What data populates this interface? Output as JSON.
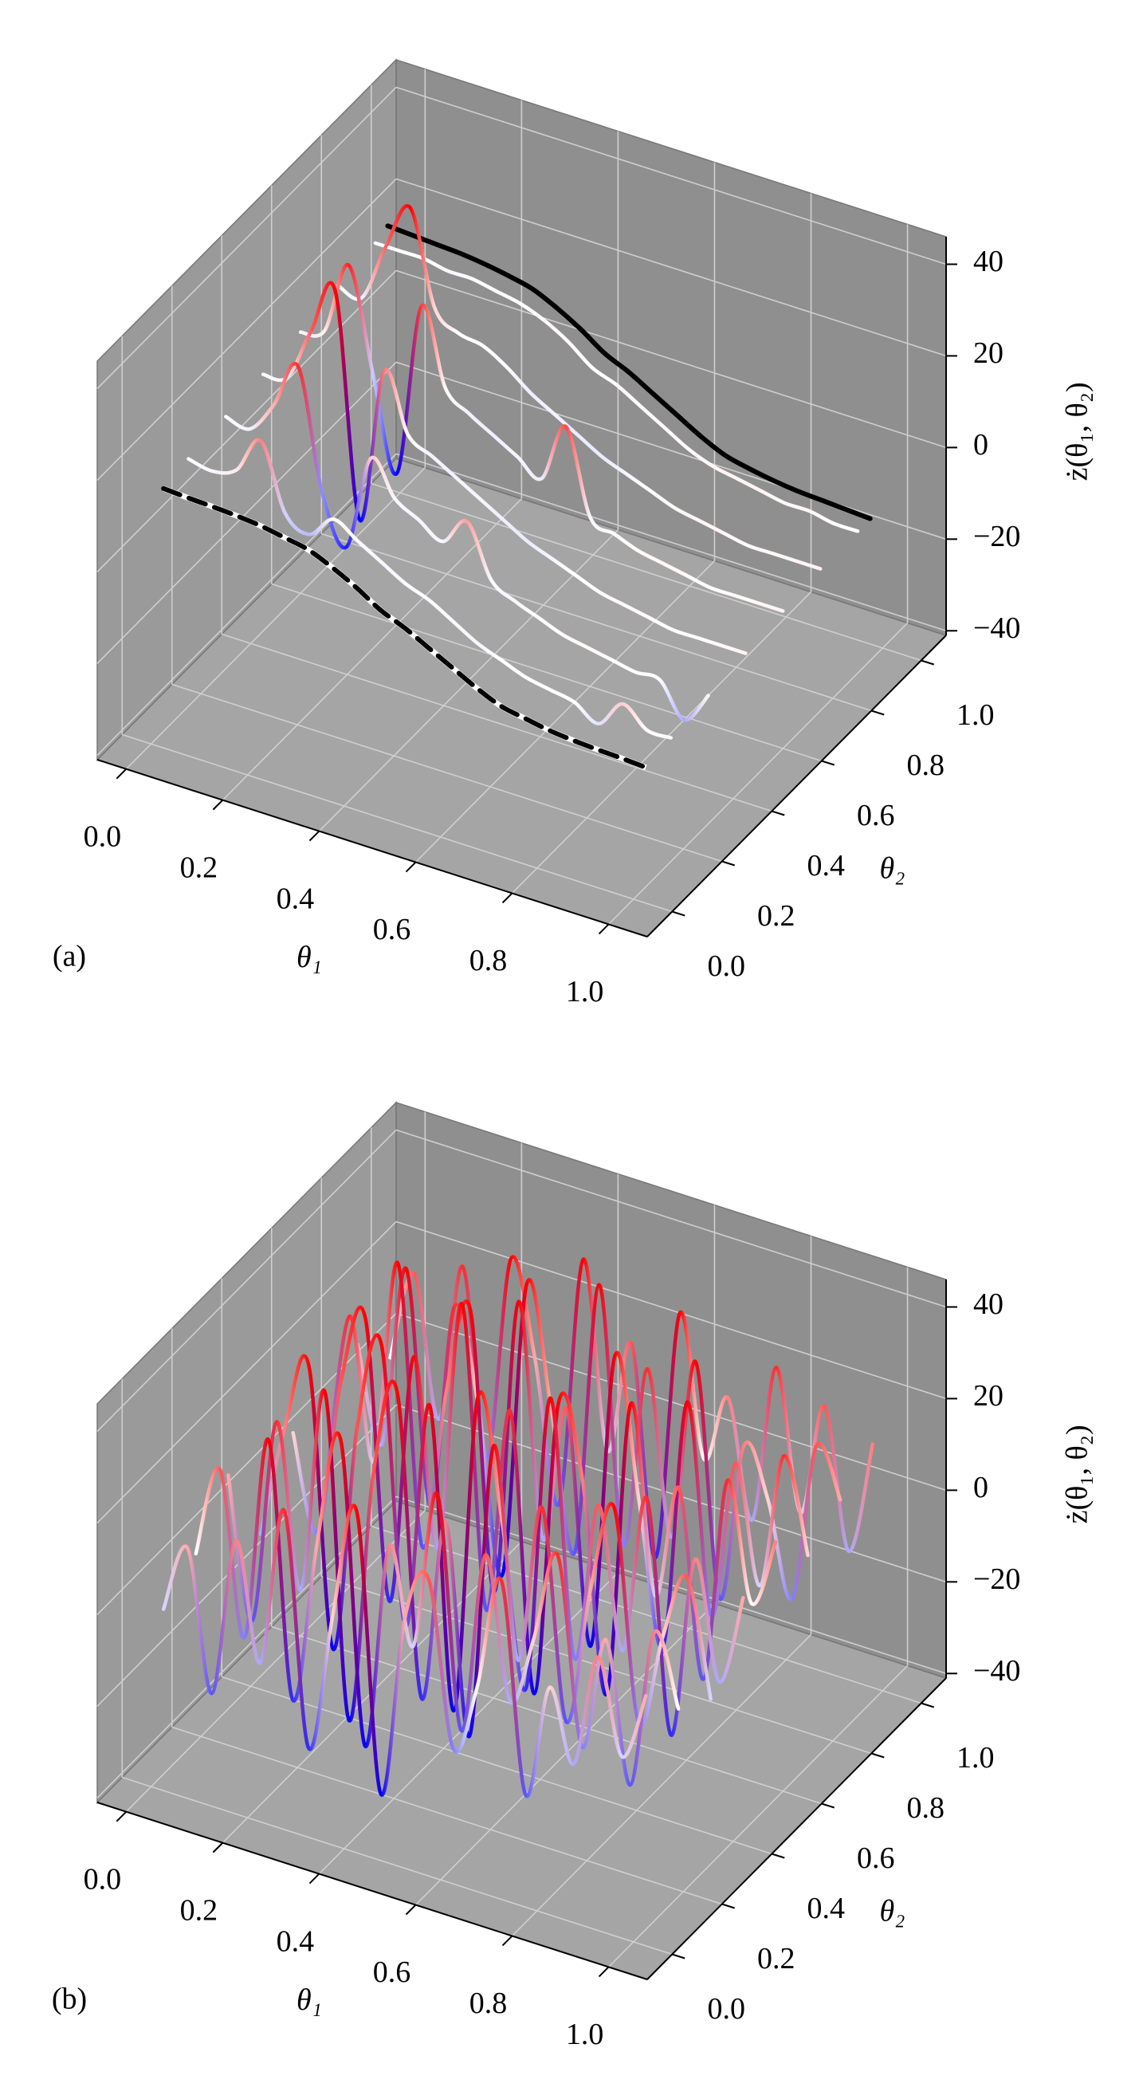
{
  "chart_data": [
    {
      "type": "line3d",
      "panel_label": "(a)",
      "xlabel": "θ₁",
      "ylabel": "θ₂",
      "zlabel": "ż(θ₁, θ₂)",
      "xlim": [
        -0.06,
        1.08
      ],
      "ylim": [
        -0.1,
        1.1
      ],
      "zlim": [
        -41,
        46
      ],
      "xticks": [
        {
          "value": 0,
          "label": "0.0"
        },
        0.2,
        0.4,
        0.6,
        0.8,
        {
          "value": 1,
          "label": "1.0"
        }
      ],
      "yticks": [
        {
          "value": 0,
          "label": "0.0"
        },
        0.2,
        0.4,
        0.6,
        0.8,
        {
          "value": 1,
          "label": "1.0"
        }
      ],
      "zticks": [
        {
          "value": -40,
          "label": "−40"
        },
        {
          "value": -20,
          "label": "−20"
        },
        0,
        20,
        40
      ],
      "grid": true,
      "colormap": "bwr",
      "clim": [
        -20,
        20
      ],
      "color_by": "residual",
      "x": [
        0,
        0.05,
        0.1,
        0.15,
        0.2,
        0.25,
        0.3,
        0.35,
        0.4,
        0.45,
        0.5,
        0.55,
        0.6,
        0.65,
        0.7,
        0.75,
        0.8,
        0.85,
        0.9,
        0.95,
        1
      ],
      "curves": [
        {
          "y": 0.05,
          "color": "#000000",
          "style": "dashed",
          "values": [
            12,
            11.7,
            11.5,
            11.2,
            10.7,
            9.8,
            8.8,
            6.6,
            3.9,
            0.7,
            -1.5,
            -4.2,
            -6.9,
            -9.6,
            -11.8,
            -12.8,
            -13.7,
            -14.2,
            -14.5,
            -14.7,
            -15
          ]
        },
        {
          "y": 0.95,
          "color": "#000000",
          "style": "solid",
          "values": [
            20,
            19.7,
            19.4,
            19.1,
            18.5,
            17.6,
            16.4,
            14,
            11,
            7.4,
            5,
            2,
            -1,
            -4,
            -6.4,
            -7.6,
            -8.5,
            -9.1,
            -9.4,
            -9.7,
            -10
          ]
        }
      ],
      "lines": [
        {
          "y": 0.15,
          "values": [
            13,
            12,
            14,
            22,
            8,
            5,
            10,
            7,
            4,
            1,
            -1,
            -4,
            -7,
            -9,
            -11,
            -12,
            -13,
            -16,
            -10,
            -14,
            -14
          ]
        },
        {
          "y": 0.3,
          "values": [
            14,
            13,
            20,
            30,
            4,
            -6,
            15,
            8,
            5,
            2,
            8,
            -3,
            -6,
            -8,
            -10,
            -11,
            -12,
            -13,
            -13,
            -20,
            -13
          ]
        },
        {
          "y": 0.45,
          "values": [
            15,
            16,
            28,
            38,
            -10,
            24,
            12,
            9,
            6,
            3,
            0,
            -3,
            -5,
            -7,
            -9,
            -10,
            -11,
            -12,
            -12,
            -12,
            -12
          ]
        },
        {
          "y": 0.6,
          "values": [
            16,
            18,
            34,
            12,
            -8,
            30,
            14,
            10,
            7,
            4,
            1,
            14,
            -4,
            -6,
            -8,
            -9,
            -10,
            -11,
            -11,
            -11,
            -11
          ]
        },
        {
          "y": 0.75,
          "values": [
            18,
            17,
            30,
            40,
            20,
            16,
            15,
            12,
            8,
            5,
            2,
            -1,
            -3,
            -5,
            -7,
            -8,
            -9,
            -10,
            -10,
            -10,
            -10
          ]
        },
        {
          "y": 0.9,
          "values": [
            19,
            19,
            19,
            18,
            18,
            17,
            16,
            14,
            11,
            7,
            5,
            2,
            -1,
            -4,
            -6,
            -7,
            -8,
            -9,
            -9,
            -10,
            -10
          ]
        }
      ]
    },
    {
      "type": "line3d",
      "panel_label": "(b)",
      "xlabel": "θ₁",
      "ylabel": "θ₂",
      "zlabel": "ż(θ₁, θ₂)",
      "xlim": [
        -0.06,
        1.08
      ],
      "ylim": [
        -0.1,
        1.1
      ],
      "zlim": [
        -41,
        46
      ],
      "xticks": [
        {
          "value": 0,
          "label": "0.0"
        },
        0.2,
        0.4,
        0.6,
        0.8,
        {
          "value": 1,
          "label": "1.0"
        }
      ],
      "yticks": [
        {
          "value": 0,
          "label": "0.0"
        },
        0.2,
        0.4,
        0.6,
        0.8,
        {
          "value": 1,
          "label": "1.0"
        }
      ],
      "zticks": [
        {
          "value": -40,
          "label": "−40"
        },
        {
          "value": -20,
          "label": "−20"
        },
        0,
        20,
        40
      ],
      "grid": true,
      "colormap": "bwr",
      "clim": [
        -30,
        30
      ],
      "color_by": "value",
      "x": [
        0,
        0.05,
        0.1,
        0.15,
        0.2,
        0.25,
        0.3,
        0.35,
        0.4,
        0.45,
        0.5,
        0.55,
        0.6,
        0.65,
        0.7,
        0.75,
        0.8,
        0.85,
        0.9,
        0.95,
        1
      ],
      "lines": [
        {
          "y": 0.05,
          "values": [
            -5,
            10,
            -20,
            15,
            -10,
            25,
            -25,
            5,
            30,
            -30,
            10,
            20,
            -15,
            0,
            25,
            -20,
            5,
            -10,
            15,
            -5,
            10
          ]
        },
        {
          "y": 0.18,
          "values": [
            0,
            20,
            -15,
            30,
            -25,
            10,
            35,
            -30,
            15,
            -5,
            30,
            -20,
            20,
            -10,
            5,
            25,
            -15,
            10,
            -20,
            15,
            0
          ]
        },
        {
          "y": 0.31,
          "values": [
            10,
            -20,
            25,
            -10,
            35,
            -35,
            20,
            40,
            -25,
            15,
            -30,
            35,
            -10,
            25,
            -20,
            10,
            30,
            -15,
            5,
            20,
            -5
          ]
        },
        {
          "y": 0.44,
          "values": [
            -10,
            15,
            30,
            -30,
            20,
            40,
            -20,
            30,
            -35,
            35,
            10,
            -25,
            40,
            -15,
            20,
            -10,
            25,
            -25,
            15,
            -10,
            10
          ]
        },
        {
          "y": 0.57,
          "values": [
            5,
            -15,
            20,
            35,
            -25,
            30,
            -10,
            45,
            -20,
            25,
            -35,
            30,
            15,
            -30,
            35,
            -5,
            20,
            -20,
            25,
            0,
            15
          ]
        },
        {
          "y": 0.7,
          "values": [
            -15,
            25,
            -5,
            40,
            -20,
            15,
            35,
            -25,
            40,
            -10,
            20,
            -30,
            35,
            5,
            -25,
            30,
            -15,
            20,
            -5,
            25,
            5
          ]
        },
        {
          "y": 0.83,
          "values": [
            10,
            -10,
            30,
            -20,
            25,
            5,
            -30,
            35,
            10,
            -20,
            40,
            -15,
            25,
            -10,
            30,
            -20,
            15,
            5,
            -15,
            20,
            10
          ]
        },
        {
          "y": 0.96,
          "values": [
            0,
            20,
            -10,
            25,
            -15,
            30,
            10,
            -20,
            35,
            -5,
            20,
            -25,
            30,
            0,
            15,
            -10,
            25,
            -5,
            20,
            -10,
            15
          ]
        }
      ]
    }
  ]
}
